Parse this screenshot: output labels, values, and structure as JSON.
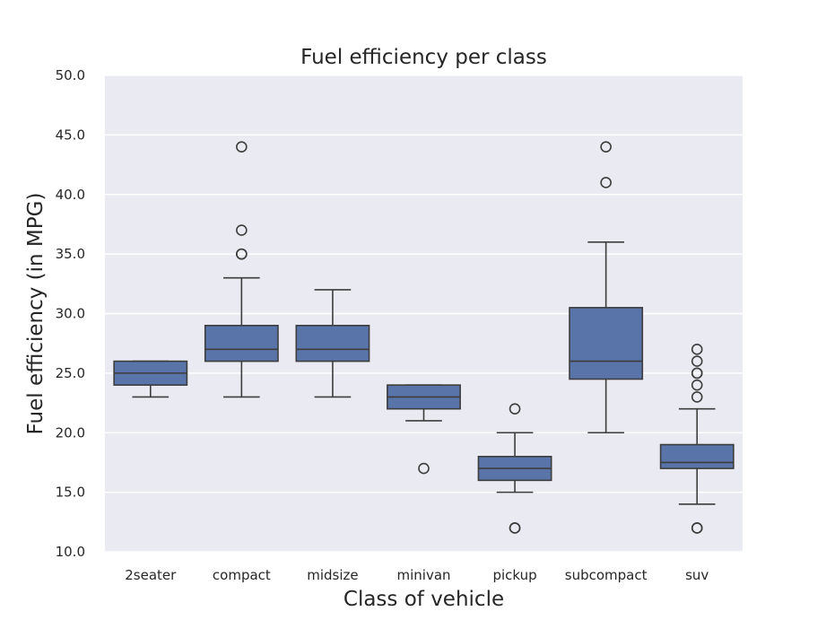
{
  "chart_data": {
    "type": "box",
    "title": "Fuel efficiency per class",
    "xlabel": "Class of vehicle",
    "ylabel": "Fuel efficiency (in MPG)",
    "ylim": [
      10,
      50
    ],
    "yticks": [
      "10.0",
      "15.0",
      "20.0",
      "25.0",
      "30.0",
      "35.0",
      "40.0",
      "45.0",
      "50.0"
    ],
    "grid": true,
    "box_color": "#5874a8",
    "line_color": "#3d3d3d",
    "plot_background": "#eaeaf2",
    "categories": [
      "2seater",
      "compact",
      "midsize",
      "minivan",
      "pickup",
      "subcompact",
      "suv"
    ],
    "boxes": [
      {
        "whisker_low": 23,
        "q1": 24,
        "median": 25,
        "q3": 26,
        "whisker_high": 26,
        "outliers": []
      },
      {
        "whisker_low": 23,
        "q1": 26,
        "median": 27,
        "q3": 29,
        "whisker_high": 33,
        "outliers": [
          35,
          35,
          37,
          44
        ]
      },
      {
        "whisker_low": 23,
        "q1": 26,
        "median": 27,
        "q3": 29,
        "whisker_high": 32,
        "outliers": []
      },
      {
        "whisker_low": 21,
        "q1": 22,
        "median": 23,
        "q3": 24,
        "whisker_high": 24,
        "outliers": [
          17
        ]
      },
      {
        "whisker_low": 15,
        "q1": 16,
        "median": 17,
        "q3": 18,
        "whisker_high": 20,
        "outliers": [
          12,
          12,
          22
        ]
      },
      {
        "whisker_low": 20,
        "q1": 24.5,
        "median": 26,
        "q3": 30.5,
        "whisker_high": 36,
        "outliers": [
          41,
          44
        ]
      },
      {
        "whisker_low": 14,
        "q1": 17,
        "median": 17.5,
        "q3": 19,
        "whisker_high": 22,
        "outliers": [
          12,
          12,
          23,
          24,
          25,
          25,
          26,
          27
        ]
      }
    ]
  }
}
